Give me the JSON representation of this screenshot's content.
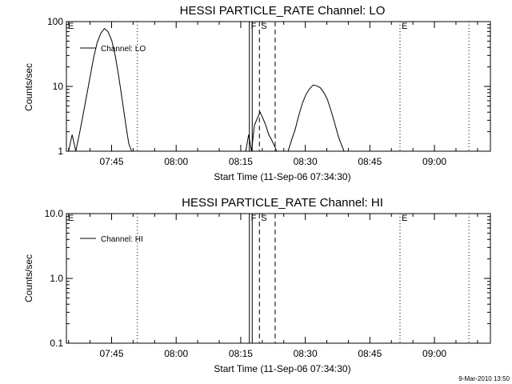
{
  "stamp": "9-Mar-2010 13:50",
  "chart_data": [
    {
      "type": "line",
      "title": "HESSI PARTICLE_RATE Channel: LO",
      "xlabel": "Start Time (11-Sep-06 07:34:30)",
      "ylabel": "Counts/sec",
      "yscale": "log",
      "ylim": [
        1,
        100
      ],
      "xlim": [
        "07:34:30",
        "09:13:00"
      ],
      "x_ticks": [
        "07:45",
        "08:00",
        "08:15",
        "08:30",
        "08:45",
        "09:00"
      ],
      "y_ticks": [
        "1",
        "10",
        "100"
      ],
      "legend": "top-left",
      "series": [
        {
          "name": "Channel: LO",
          "x": [
            "07:35:00",
            "07:35:50",
            "07:36:40",
            "07:37:30",
            "07:38:20",
            "07:39:10",
            "07:40:00",
            "07:40:50",
            "07:41:40",
            "07:42:30",
            "07:43:20",
            "07:44:10",
            "07:45:00",
            "07:45:50",
            "07:46:40",
            "07:47:30",
            "07:48:20",
            "07:49:00",
            "07:49:40",
            "08:16:10",
            "08:16:50",
            "08:17:30",
            "08:18:10",
            "08:18:50",
            "08:19:30",
            "08:20:10",
            "08:20:50",
            "08:21:30",
            "08:22:10",
            "08:22:50",
            "08:23:20",
            "08:26:00",
            "08:26:50",
            "08:27:40",
            "08:28:30",
            "08:29:20",
            "08:30:10",
            "08:31:00",
            "08:31:50",
            "08:32:40",
            "08:33:30",
            "08:34:20",
            "08:35:10",
            "08:36:00",
            "08:36:50",
            "08:37:40",
            "08:38:30",
            "08:39:00"
          ],
          "y": [
            1,
            1.8,
            1,
            1.8,
            3.5,
            7,
            14,
            28,
            48,
            66,
            78,
            70,
            52,
            30,
            14,
            6,
            2.5,
            1.3,
            1,
            1,
            1.8,
            1,
            2.5,
            3.2,
            4,
            3.2,
            2.5,
            1.8,
            1.5,
            1.2,
            1,
            1,
            1.5,
            2.2,
            3.6,
            5.5,
            7.5,
            9.2,
            10.5,
            10.2,
            9.5,
            8,
            6.2,
            4.2,
            2.7,
            1.7,
            1.2,
            1
          ]
        }
      ],
      "markers": [
        {
          "label": "E",
          "time": "07:34:30",
          "style": "dotted",
          "labeled": true
        },
        {
          "label": "",
          "time": "07:51:00",
          "style": "dotted",
          "labeled": false
        },
        {
          "label": "F",
          "time": "08:17:00",
          "style": "solid",
          "labeled": true
        },
        {
          "label": "",
          "time": "08:17:40",
          "style": "solid",
          "labeled": false
        },
        {
          "label": "S",
          "time": "08:19:20",
          "style": "dashed",
          "labeled": true
        },
        {
          "label": "",
          "time": "08:23:00",
          "style": "dashed",
          "labeled": false
        },
        {
          "label": "E",
          "time": "08:52:00",
          "style": "dotted",
          "labeled": true
        },
        {
          "label": "",
          "time": "09:08:00",
          "style": "dotted",
          "labeled": false
        }
      ]
    },
    {
      "type": "line",
      "title": "HESSI PARTICLE_RATE Channel: HI",
      "xlabel": "Start Time (11-Sep-06 07:34:30)",
      "ylabel": "Counts/sec",
      "yscale": "log",
      "ylim": [
        0.1,
        10
      ],
      "xlim": [
        "07:34:30",
        "09:13:00"
      ],
      "x_ticks": [
        "07:45",
        "08:00",
        "08:15",
        "08:30",
        "08:45",
        "09:00"
      ],
      "y_ticks": [
        "0.1",
        "1.0",
        "10.0"
      ],
      "legend": "top-left",
      "series": [
        {
          "name": "Channel: HI",
          "x": [],
          "y": []
        }
      ],
      "markers": [
        {
          "label": "E",
          "time": "07:34:30",
          "style": "dotted",
          "labeled": true
        },
        {
          "label": "",
          "time": "07:51:00",
          "style": "dotted",
          "labeled": false
        },
        {
          "label": "F",
          "time": "08:17:00",
          "style": "solid",
          "labeled": true
        },
        {
          "label": "",
          "time": "08:17:40",
          "style": "solid",
          "labeled": false
        },
        {
          "label": "S",
          "time": "08:19:20",
          "style": "dashed",
          "labeled": true
        },
        {
          "label": "",
          "time": "08:23:00",
          "style": "dashed",
          "labeled": false
        },
        {
          "label": "E",
          "time": "08:52:00",
          "style": "dotted",
          "labeled": true
        },
        {
          "label": "",
          "time": "09:08:00",
          "style": "dotted",
          "labeled": false
        }
      ]
    }
  ]
}
